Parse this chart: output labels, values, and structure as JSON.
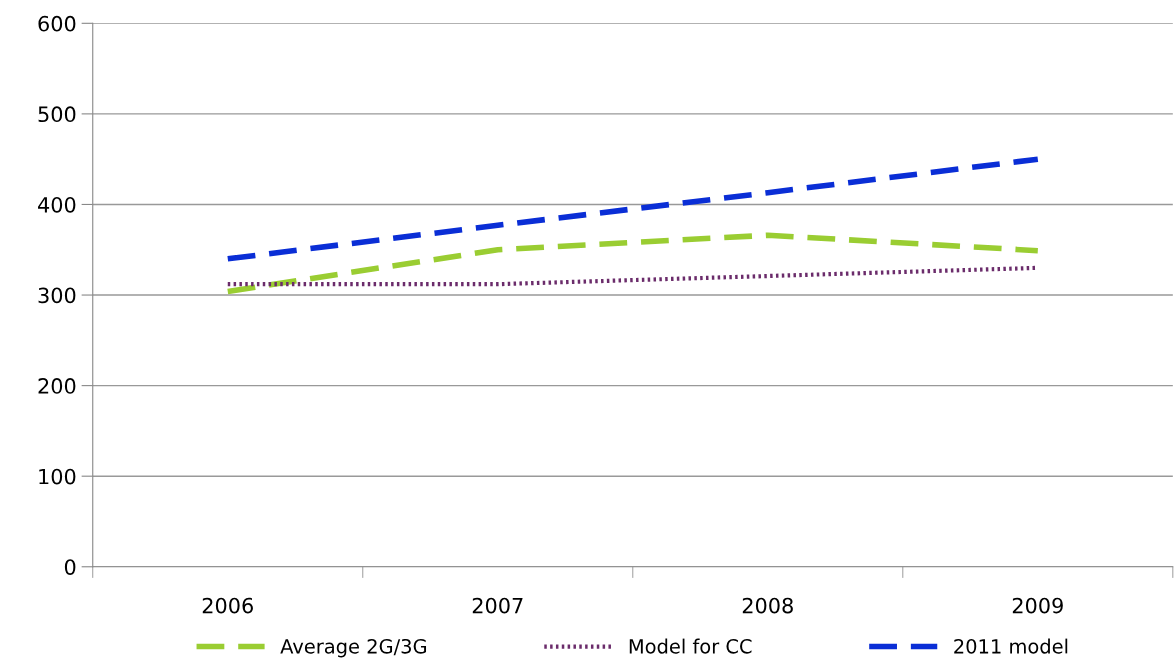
{
  "chart_data": {
    "type": "line",
    "categories": [
      "2006",
      "2007",
      "2008",
      "2009"
    ],
    "series": [
      {
        "name": "Average 2G/3G",
        "color": "#9acd32",
        "line_style": "dashed",
        "values": [
          304,
          350,
          366,
          349
        ]
      },
      {
        "name": "Model for CC",
        "color": "#6b2c6b",
        "line_style": "dotted",
        "values": [
          312,
          312,
          321,
          330
        ]
      },
      {
        "name": "2011 model",
        "color": "#0a2ed6",
        "line_style": "dashed",
        "values": [
          340,
          377,
          413,
          450
        ]
      }
    ],
    "ylim": [
      0,
      600
    ],
    "yticks": [
      0,
      100,
      200,
      300,
      400,
      500,
      600
    ],
    "grid": "y",
    "legend": "bottom",
    "marker": "none"
  }
}
